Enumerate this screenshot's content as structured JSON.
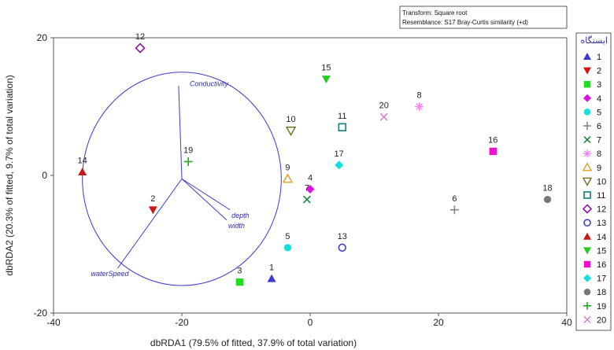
{
  "chart_data": {
    "type": "scatter",
    "title": "",
    "xlabel": "dbRDA1 (79.5% of fitted, 37.9% of total variation)",
    "ylabel": "dbRDA2 (20.3% of fitted, 9.7% of total variation)",
    "xlim": [
      -40,
      40
    ],
    "ylim": [
      -20,
      20
    ],
    "x_ticks": [
      -40,
      -20,
      0,
      20,
      40
    ],
    "y_ticks": [
      -20,
      0,
      20
    ],
    "info_box": [
      "Transform: Square root",
      "Resemblance: S17 Bray-Curtis similarity (+d)"
    ],
    "legend_title": "ایستگاه",
    "legend_placement": "right",
    "points": [
      {
        "label": "1",
        "x": -6,
        "y": -15,
        "marker": "triangle-up",
        "color": "#3a3ad0"
      },
      {
        "label": "2",
        "x": -24.5,
        "y": -5,
        "marker": "triangle-down",
        "color": "#d01818"
      },
      {
        "label": "3",
        "x": -11,
        "y": -15.5,
        "marker": "square",
        "color": "#22dd22"
      },
      {
        "label": "4",
        "x": 0,
        "y": -2,
        "marker": "diamond",
        "color": "#dd10dd"
      },
      {
        "label": "5",
        "x": -3.5,
        "y": -10.5,
        "marker": "circle",
        "color": "#10e0e0"
      },
      {
        "label": "6",
        "x": 22.5,
        "y": -5,
        "marker": "plus",
        "color": "#888888"
      },
      {
        "label": "7",
        "x": -0.5,
        "y": -3.5,
        "marker": "cross",
        "color": "#1a8a3a"
      },
      {
        "label": "8",
        "x": 17,
        "y": 10,
        "marker": "asterisk",
        "color": "#ee88ee"
      },
      {
        "label": "9",
        "x": -3.5,
        "y": -0.5,
        "marker": "triangle-up-open",
        "color": "#e0a020"
      },
      {
        "label": "10",
        "x": -3,
        "y": 6.5,
        "marker": "triangle-down-open",
        "color": "#707020"
      },
      {
        "label": "11",
        "x": 5,
        "y": 7,
        "marker": "square-open",
        "color": "#108080"
      },
      {
        "label": "12",
        "x": -26.5,
        "y": 18.5,
        "marker": "diamond-open",
        "color": "#8a18a8"
      },
      {
        "label": "13",
        "x": 5,
        "y": -10.5,
        "marker": "circle-open",
        "color": "#4040c0"
      },
      {
        "label": "14",
        "x": -35.5,
        "y": 0.5,
        "marker": "triangle-up",
        "color": "#c81818"
      },
      {
        "label": "15",
        "x": 2.5,
        "y": 14,
        "marker": "triangle-down",
        "color": "#22cc22"
      },
      {
        "label": "16",
        "x": 28.5,
        "y": 3.5,
        "marker": "square",
        "color": "#ee10cc"
      },
      {
        "label": "17",
        "x": 4.5,
        "y": 1.5,
        "marker": "diamond",
        "color": "#10e0e0"
      },
      {
        "label": "18",
        "x": 37,
        "y": -3.5,
        "marker": "circle",
        "color": "#777777"
      },
      {
        "label": "19",
        "x": -19,
        "y": 2,
        "marker": "plus",
        "color": "#22aa22"
      },
      {
        "label": "20",
        "x": 11.5,
        "y": 8.5,
        "marker": "cross",
        "color": "#cc88cc"
      }
    ],
    "vectors": [
      {
        "label": "Conductivity",
        "x": -0.5,
        "y": 13.5
      },
      {
        "label": "depth",
        "x": 7.5,
        "y": -4.5
      },
      {
        "label": "width",
        "x": 7,
        "y": -6
      },
      {
        "label": "waterSpeed",
        "x": -10,
        "y": -13
      }
    ],
    "vector_origin": {
      "x": -20,
      "y": -0.5
    },
    "vector_circle_radius": 15.5
  }
}
